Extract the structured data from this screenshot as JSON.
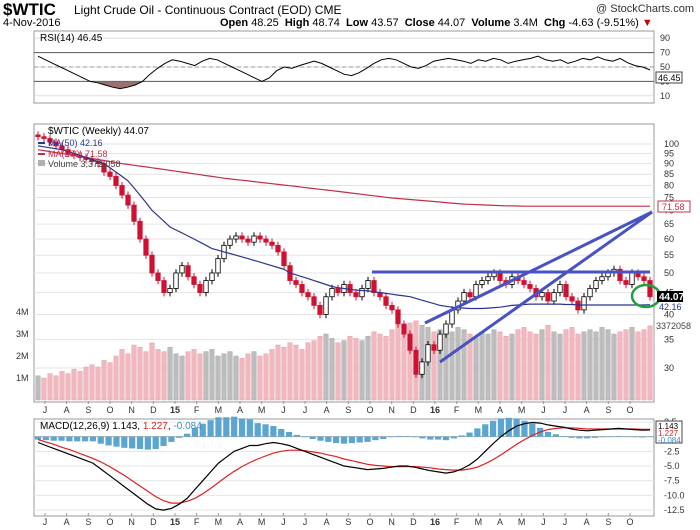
{
  "header": {
    "symbol": "$WTIC",
    "name": "Light Crude Oil - Continuous Contract (EOD)",
    "exchange": "CME",
    "date": "4-Nov-2016",
    "watermark": "@ StockCharts.com",
    "open_label": "Open",
    "open": "48.25",
    "high_label": "High",
    "high": "48.74",
    "low_label": "Low",
    "low": "43.57",
    "close_label": "Close",
    "close": "44.07",
    "volume_label": "Volume",
    "volume": "3.4M",
    "chg_label": "Chg",
    "chg": "-4.63 (-9.51%)",
    "chg_arrow": "▼"
  },
  "chart_data": {
    "type": "line",
    "x_labels": [
      "J",
      "A",
      "S",
      "O",
      "N",
      "D",
      "15",
      "F",
      "M",
      "A",
      "M",
      "J",
      "J",
      "A",
      "S",
      "O",
      "N",
      "D",
      "16",
      "F",
      "M",
      "A",
      "M",
      "J",
      "J",
      "A",
      "S",
      "O"
    ],
    "rsi": {
      "legend": "RSI(14) 46.45",
      "last_label": "46.45",
      "ticks": [
        90,
        70,
        50,
        30,
        10
      ],
      "values": [
        65,
        60,
        55,
        50,
        45,
        40,
        35,
        30,
        28,
        25,
        22,
        20,
        22,
        25,
        30,
        40,
        48,
        55,
        60,
        58,
        55,
        52,
        58,
        62,
        60,
        55,
        50,
        45,
        40,
        35,
        30,
        35,
        45,
        50,
        48,
        52,
        55,
        58,
        55,
        50,
        45,
        40,
        38,
        42,
        48,
        55,
        60,
        62,
        60,
        55,
        50,
        48,
        52,
        58,
        60,
        62,
        60,
        58,
        55,
        60,
        58,
        62,
        60,
        55,
        58,
        60,
        62,
        65,
        60,
        58,
        60,
        55,
        58,
        62,
        60,
        64,
        60,
        58,
        62,
        56,
        52,
        50,
        46
      ]
    },
    "price": {
      "legend": "$WTIC (Weekly) 44.07",
      "ma50_legend": "MA(50) 42.16",
      "ma200_legend": "MA(200) 71.58",
      "vol_legend": "Volume 3,372,058",
      "ticks": [
        100,
        95,
        90,
        85,
        80,
        75,
        70,
        65,
        60,
        55,
        50,
        45,
        40,
        35,
        30
      ],
      "vol_ticks": [
        "4M",
        "3M",
        "2M",
        "1M"
      ],
      "closes": [
        104,
        103,
        101,
        99,
        97,
        95,
        94,
        93,
        92,
        91,
        90,
        86,
        84,
        80,
        76,
        72,
        66,
        60,
        55,
        50,
        48,
        45,
        46,
        50,
        52,
        49,
        47,
        45,
        48,
        50,
        54,
        58,
        60,
        61,
        60,
        59,
        61,
        60,
        59,
        58,
        56,
        52,
        48,
        47,
        45,
        44,
        42,
        40,
        44,
        46,
        45,
        47,
        45,
        44,
        46,
        48,
        45,
        44,
        42,
        41,
        38,
        36,
        33,
        29,
        31,
        34,
        33,
        36,
        38,
        41,
        43,
        45,
        44,
        47,
        48,
        49,
        50,
        48,
        47,
        49,
        48,
        47,
        46,
        44,
        45,
        43,
        45,
        47,
        44,
        43,
        41,
        44,
        46,
        48,
        49,
        50,
        51,
        48,
        47,
        50,
        49,
        48,
        44
      ],
      "ma50": [
        99,
        98.5,
        98,
        97.5,
        97,
        96,
        95,
        94,
        93,
        92,
        91,
        90,
        88,
        86,
        84,
        82,
        79,
        76,
        73,
        70,
        68,
        66,
        64,
        63,
        62,
        61,
        60,
        59,
        58,
        57,
        56.5,
        56,
        55.5,
        55,
        54.5,
        54,
        53.5,
        53,
        52.5,
        52,
        51.5,
        51,
        50,
        49.5,
        49,
        48.5,
        48,
        47.5,
        47,
        46.5,
        46.2,
        46,
        45.8,
        45.6,
        45.5,
        45.4,
        45.2,
        45,
        44.8,
        44.6,
        44.4,
        44.2,
        44,
        43.6,
        43.2,
        42.8,
        42.4,
        42,
        41.8,
        41.6,
        41.5,
        41.4,
        41.3,
        41.3,
        41.3,
        41.4,
        41.5,
        41.6,
        41.8,
        42,
        42.1,
        42.2,
        42.3,
        42.3,
        42.3,
        42.3,
        42.3,
        42.3,
        42.2,
        42.2,
        42.1,
        42.1,
        42.1,
        42.1,
        42.1,
        42.1,
        42.1,
        42.1,
        42.1,
        42.1,
        42.1,
        42.1,
        42.16
      ],
      "ma200": [
        97,
        96.5,
        96,
        95.5,
        95,
        94.5,
        94,
        93.5,
        93,
        92.5,
        92,
        91.5,
        91,
        90.5,
        90,
        89.6,
        89.2,
        88.8,
        88.4,
        88,
        87.6,
        87.2,
        86.8,
        86.4,
        86,
        85.6,
        85.2,
        84.8,
        84.4,
        84,
        83.6,
        83.2,
        82.9,
        82.6,
        82.3,
        82,
        81.7,
        81.4,
        81.1,
        80.8,
        80.5,
        80.2,
        79.9,
        79.6,
        79.3,
        79,
        78.7,
        78.4,
        78.1,
        77.8,
        77.5,
        77.2,
        76.9,
        76.6,
        76.3,
        76,
        75.7,
        75.4,
        75.1,
        74.8,
        74.6,
        74.4,
        74.2,
        74,
        73.8,
        73.6,
        73.4,
        73.2,
        73,
        72.8,
        72.6,
        72.4,
        72.3,
        72.2,
        72.1,
        72,
        71.9,
        71.8,
        71.75,
        71.7,
        71.65,
        71.6,
        71.6,
        71.6,
        71.6,
        71.6,
        71.6,
        71.6,
        71.6,
        71.6,
        71.6,
        71.58,
        71.58,
        71.58,
        71.58,
        71.58,
        71.58,
        71.58,
        71.58,
        71.58,
        71.58,
        71.58,
        71.58
      ],
      "volume_m": [
        1.1,
        1.0,
        1.2,
        1.1,
        1.3,
        1.2,
        1.4,
        1.3,
        1.5,
        1.6,
        1.5,
        1.8,
        1.7,
        2.0,
        2.3,
        2.1,
        2.5,
        2.4,
        2.2,
        2.6,
        2.3,
        2.2,
        2.4,
        2.1,
        2.0,
        2.2,
        2.3,
        2.1,
        2.2,
        2.3,
        2.0,
        2.1,
        2.2,
        2.0,
        1.9,
        2.1,
        2.2,
        2.0,
        2.1,
        2.3,
        2.5,
        2.4,
        2.6,
        2.5,
        2.3,
        2.6,
        2.7,
        2.9,
        3.0,
        2.8,
        2.6,
        2.7,
        2.9,
        2.8,
        2.7,
        2.9,
        3.1,
        3.0,
        2.9,
        3.2,
        3.4,
        3.3,
        3.5,
        3.6,
        3.4,
        3.3,
        3.1,
        3.2,
        3.0,
        3.1,
        3.3,
        3.2,
        3.0,
        2.9,
        3.1,
        3.0,
        3.2,
        3.1,
        2.9,
        3.0,
        3.2,
        3.3,
        3.1,
        3.0,
        3.2,
        3.4,
        3.1,
        3.0,
        3.2,
        3.3,
        3.0,
        3.1,
        3.2,
        3.1,
        3.3,
        3.2,
        3.0,
        3.1,
        3.2,
        3.3,
        3.1,
        3.2,
        3.37
      ],
      "overlay_labels": [
        "71.58",
        "44.07",
        "42.16",
        "3372058"
      ],
      "annotations": [
        "resistance line at 50",
        "rising channel",
        "circle at latest close"
      ]
    },
    "macd": {
      "legend_name": "MACD(12,26,9)",
      "macd_val": "1.143",
      "signal_val": "1.227",
      "hist_val": "-0.084",
      "ticks": [
        2.5,
        0.0,
        -2.5,
        -5.0,
        -7.5,
        -10.0,
        -12.5
      ],
      "last_labels": [
        "1.143",
        "1.227",
        "-0.084"
      ],
      "macd": [
        -1.0,
        -1.5,
        -2.0,
        -2.5,
        -3.0,
        -3.5,
        -4.0,
        -4.5,
        -5.5,
        -6.5,
        -7.5,
        -8.5,
        -9.5,
        -10.5,
        -11.5,
        -12.3,
        -12.5,
        -12.2,
        -11.5,
        -10.5,
        -9.0,
        -7.5,
        -6.0,
        -4.5,
        -3.5,
        -2.5,
        -2.0,
        -1.5,
        -1.5,
        -1.2,
        -1.0,
        -1.2,
        -1.5,
        -2.0,
        -2.5,
        -3.0,
        -3.5,
        -4.0,
        -4.5,
        -5.0,
        -5.2,
        -5.4,
        -5.6,
        -5.5,
        -5.4,
        -5.2,
        -5.0,
        -5.0,
        -5.2,
        -5.5,
        -5.8,
        -6.0,
        -6.2,
        -6.0,
        -5.5,
        -4.8,
        -3.8,
        -2.5,
        -1.2,
        0.0,
        1.0,
        1.8,
        2.2,
        2.4,
        2.3,
        2.0,
        1.8,
        1.6,
        1.3,
        1.1,
        1.0,
        1.1,
        1.2,
        1.3,
        1.4,
        1.3,
        1.2,
        1.1,
        1.143
      ],
      "signal": [
        -0.5,
        -0.9,
        -1.3,
        -1.8,
        -2.2,
        -2.7,
        -3.2,
        -3.7,
        -4.3,
        -5.0,
        -5.8,
        -6.6,
        -7.5,
        -8.4,
        -9.3,
        -10.2,
        -10.9,
        -11.3,
        -11.3,
        -11.0,
        -10.5,
        -9.7,
        -8.8,
        -7.8,
        -6.8,
        -5.9,
        -5.1,
        -4.4,
        -3.8,
        -3.3,
        -2.8,
        -2.5,
        -2.3,
        -2.3,
        -2.4,
        -2.6,
        -2.8,
        -3.1,
        -3.4,
        -3.8,
        -4.1,
        -4.4,
        -4.7,
        -4.9,
        -5.0,
        -5.1,
        -5.1,
        -5.1,
        -5.1,
        -5.2,
        -5.3,
        -5.5,
        -5.6,
        -5.7,
        -5.7,
        -5.5,
        -5.2,
        -4.6,
        -3.9,
        -3.1,
        -2.2,
        -1.3,
        -0.5,
        0.2,
        0.8,
        1.2,
        1.4,
        1.5,
        1.5,
        1.4,
        1.3,
        1.3,
        1.3,
        1.3,
        1.3,
        1.3,
        1.3,
        1.25,
        1.227
      ]
    }
  }
}
